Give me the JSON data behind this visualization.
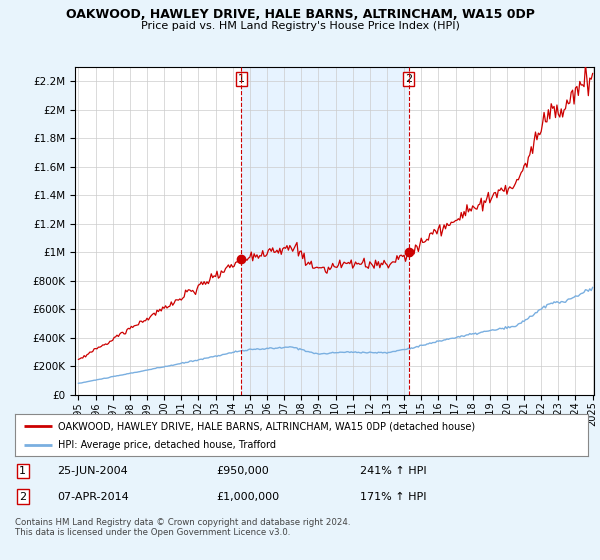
{
  "title": "OAKWOOD, HAWLEY DRIVE, HALE BARNS, ALTRINCHAM, WA15 0DP",
  "subtitle": "Price paid vs. HM Land Registry's House Price Index (HPI)",
  "legend_label_red": "OAKWOOD, HAWLEY DRIVE, HALE BARNS, ALTRINCHAM, WA15 0DP (detached house)",
  "legend_label_blue": "HPI: Average price, detached house, Trafford",
  "annotation1_label": "1",
  "annotation1_date": "25-JUN-2004",
  "annotation1_price": "£950,000",
  "annotation1_hpi": "241% ↑ HPI",
  "annotation2_label": "2",
  "annotation2_date": "07-APR-2014",
  "annotation2_price": "£1,000,000",
  "annotation2_hpi": "171% ↑ HPI",
  "footnote": "Contains HM Land Registry data © Crown copyright and database right 2024.\nThis data is licensed under the Open Government Licence v3.0.",
  "ylim": [
    0,
    2300000
  ],
  "yticks": [
    0,
    200000,
    400000,
    600000,
    800000,
    1000000,
    1200000,
    1400000,
    1600000,
    1800000,
    2000000,
    2200000
  ],
  "background_color": "#e8f4fc",
  "plot_bg_color": "#ffffff",
  "shade_color": "#ddeeff",
  "red_color": "#cc0000",
  "blue_color": "#7aafe0",
  "marker1_x": 2004.49,
  "marker1_y": 950000,
  "marker2_x": 2014.27,
  "marker2_y": 1000000,
  "vline1_x": 2004.49,
  "vline2_x": 2014.27,
  "xmin": 1995.0,
  "xmax": 2025.08
}
